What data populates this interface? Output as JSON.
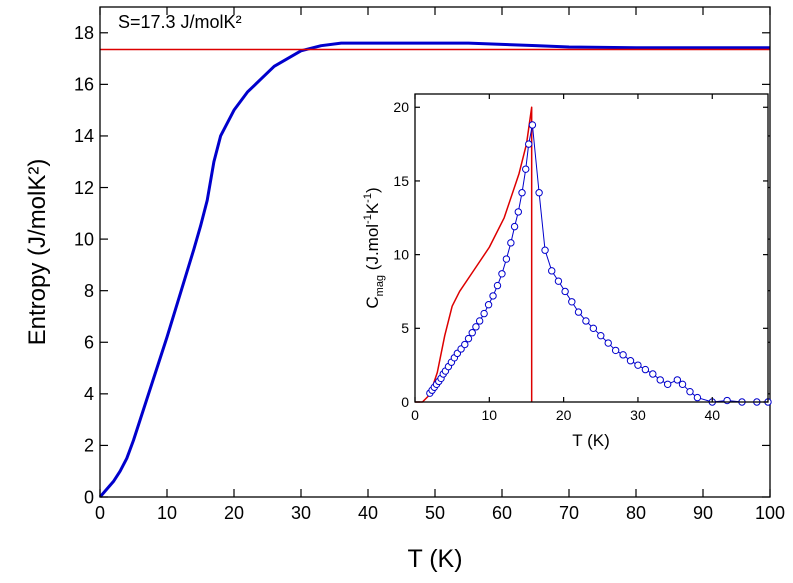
{
  "chart_data": [
    {
      "type": "line",
      "annotation": "S=17.3 J/molK²",
      "x_label": "T  (K)",
      "y_label": "Entropy  (J/molK²)",
      "xlim": [
        0,
        100
      ],
      "xticks": [
        0,
        10,
        20,
        30,
        40,
        50,
        60,
        70,
        80,
        90,
        100
      ],
      "ylim": [
        0,
        19
      ],
      "yticks": [
        0,
        2,
        4,
        6,
        8,
        10,
        12,
        14,
        16,
        18
      ],
      "series": [
        {
          "color": "#0000cc",
          "width": 3,
          "x": [
            0,
            2,
            3,
            4,
            5,
            6,
            8,
            10,
            12,
            14,
            15,
            16,
            17,
            18,
            20,
            22,
            24,
            26,
            28,
            30,
            33,
            36,
            40,
            45,
            50,
            55,
            60,
            65,
            70,
            80,
            90,
            100
          ],
          "values": [
            0,
            0.6,
            1.0,
            1.5,
            2.2,
            3.0,
            4.6,
            6.2,
            7.9,
            9.6,
            10.5,
            11.5,
            13.0,
            14.0,
            15.0,
            15.7,
            16.2,
            16.7,
            17.0,
            17.3,
            17.5,
            17.6,
            17.6,
            17.6,
            17.6,
            17.6,
            17.55,
            17.5,
            17.45,
            17.42,
            17.42,
            17.42
          ]
        },
        {
          "color": "#dd0000",
          "width": 1.5,
          "x": [
            0,
            100
          ],
          "values": [
            17.35,
            17.35
          ]
        }
      ]
    },
    {
      "type": "line",
      "x_label": "T  (K)",
      "y_label": {
        "main": "C",
        "sub": "mag",
        "rest": "  (J.mol",
        "sup1": "-1",
        "mid": "K",
        "sup2": "-1",
        "end": ")"
      },
      "xlim": [
        0,
        47.5
      ],
      "xticks": [
        0,
        10,
        20,
        30,
        40
      ],
      "ylim": [
        0,
        20.9
      ],
      "yticks": [
        0,
        5,
        10,
        15,
        20
      ],
      "series": [
        {
          "color": "#dd0000",
          "width": 1.5,
          "x": [
            0,
            1,
            2,
            3,
            4,
            5,
            6,
            8,
            10,
            12,
            14,
            15,
            15.7,
            15.7
          ],
          "values": [
            0,
            0,
            0.5,
            2,
            4.5,
            6.5,
            7.5,
            9,
            10.5,
            12.5,
            15.5,
            17.5,
            20,
            0
          ]
        },
        {
          "color": "#0000cc",
          "width": 1,
          "marker": "circle",
          "x": [
            2,
            2.3,
            2.6,
            2.9,
            3.2,
            3.5,
            3.8,
            4.1,
            4.5,
            4.9,
            5.3,
            5.7,
            6.2,
            6.7,
            7.2,
            7.7,
            8.2,
            8.7,
            9.3,
            9.9,
            10.5,
            11.1,
            11.7,
            12.3,
            12.9,
            13.4,
            13.9,
            14.4,
            14.9,
            15.3,
            15.8,
            16.7,
            17.5,
            18.4,
            19.3,
            20.2,
            21.1,
            22,
            23,
            24,
            25,
            26,
            27,
            28,
            29,
            30,
            31,
            32,
            33,
            34,
            35.3,
            36,
            37,
            38,
            40,
            42,
            44,
            46,
            47.5
          ],
          "values": [
            0.6,
            0.8,
            1.0,
            1.2,
            1.4,
            1.6,
            1.9,
            2.1,
            2.4,
            2.7,
            3.0,
            3.3,
            3.6,
            3.9,
            4.3,
            4.7,
            5.1,
            5.5,
            6.0,
            6.6,
            7.2,
            7.9,
            8.7,
            9.7,
            10.8,
            11.9,
            12.9,
            14.2,
            15.8,
            17.5,
            18.8,
            14.2,
            10.3,
            8.9,
            8.2,
            7.5,
            6.8,
            6.1,
            5.5,
            5.0,
            4.5,
            4.0,
            3.5,
            3.2,
            2.8,
            2.5,
            2.2,
            1.9,
            1.5,
            1.2,
            1.5,
            1.2,
            0.7,
            0.3,
            0,
            0.1,
            0,
            0,
            0
          ]
        }
      ]
    }
  ]
}
